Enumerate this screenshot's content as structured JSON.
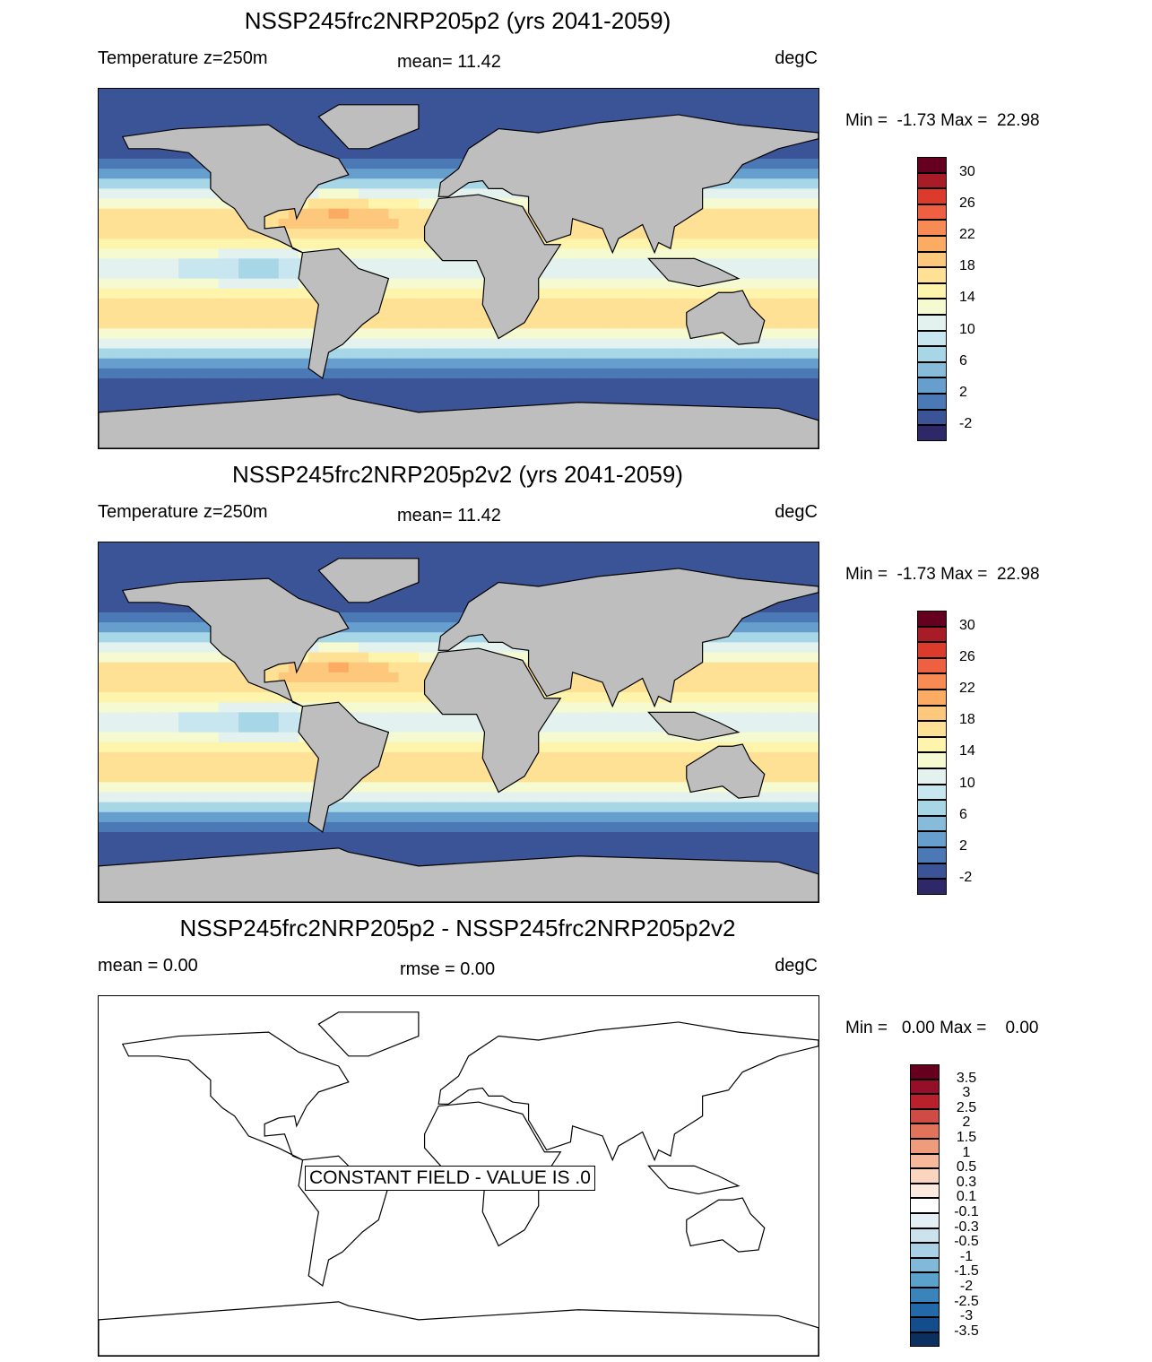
{
  "chart_data": [
    {
      "type": "heatmap",
      "title": "NSSP245frc2NRP205p2 (yrs 2041-2059)",
      "left_label": "Temperature z=250m",
      "center_label": "mean=  11.42",
      "right_label": "degC",
      "minmax": "Min =  -1.73 Max =  22.98",
      "colorbar": {
        "labels": [
          "30",
          "26",
          "22",
          "18",
          "14",
          "10",
          "6",
          "2",
          "-2"
        ],
        "levels": [
          30,
          28,
          26,
          24,
          22,
          20,
          18,
          16,
          14,
          12,
          10,
          8,
          6,
          4,
          2,
          0,
          -2
        ],
        "colors": [
          "#650021",
          "#a81c27",
          "#dc3b2c",
          "#ef6042",
          "#f88b54",
          "#fbab62",
          "#fdc87c",
          "#fee195",
          "#fff4ac",
          "#f5fad0",
          "#e3f2ee",
          "#c8e6f0",
          "#a7d6e7",
          "#86bcd9",
          "#669fcd",
          "#4a79b6",
          "#3a5497",
          "#2e2869"
        ]
      }
    },
    {
      "type": "heatmap",
      "title": "NSSP245frc2NRP205p2v2 (yrs 2041-2059)",
      "left_label": "Temperature z=250m",
      "center_label": "mean=  11.42",
      "right_label": "degC",
      "minmax": "Min =  -1.73 Max =  22.98",
      "colorbar": {
        "labels": [
          "30",
          "26",
          "22",
          "18",
          "14",
          "10",
          "6",
          "2",
          "-2"
        ],
        "levels": [
          30,
          28,
          26,
          24,
          22,
          20,
          18,
          16,
          14,
          12,
          10,
          8,
          6,
          4,
          2,
          0,
          -2
        ],
        "colors": [
          "#650021",
          "#a81c27",
          "#dc3b2c",
          "#ef6042",
          "#f88b54",
          "#fbab62",
          "#fdc87c",
          "#fee195",
          "#fff4ac",
          "#f5fad0",
          "#e3f2ee",
          "#c8e6f0",
          "#a7d6e7",
          "#86bcd9",
          "#669fcd",
          "#4a79b6",
          "#3a5497",
          "#2e2869"
        ]
      }
    },
    {
      "type": "heatmap",
      "title": "NSSP245frc2NRP205p2 - NSSP245frc2NRP205p2v2",
      "left_label": "mean =    0.00",
      "center_label": "rmse =    0.00",
      "right_label": "degC",
      "minmax": "Min =   0.00 Max =    0.00",
      "note": "CONSTANT FIELD - VALUE IS .0",
      "colorbar": {
        "labels": [
          "3.5",
          "3",
          "2.5",
          "2",
          "1.5",
          "1",
          "0.5",
          "0.3",
          "0.1",
          "-0.1",
          "-0.3",
          "-0.5",
          "-1",
          "-1.5",
          "-2",
          "-2.5",
          "-3",
          "-3.5"
        ],
        "levels": [
          3.5,
          3,
          2.5,
          2,
          1.5,
          1,
          0.5,
          0.3,
          0.1,
          -0.1,
          -0.3,
          -0.5,
          -1,
          -1.5,
          -2,
          -2.5,
          -3,
          -3.5
        ],
        "colors": [
          "#67001f",
          "#940f27",
          "#b8202c",
          "#cf4c44",
          "#e0735a",
          "#ef9c7c",
          "#f6b99b",
          "#fcd5c0",
          "#fde9df",
          "#ffffff",
          "#e4eff5",
          "#cce3ee",
          "#a9d0e4",
          "#82b9d9",
          "#5aa1cb",
          "#3a84bb",
          "#2368a8",
          "#144d8b",
          "#0b305f"
        ]
      }
    }
  ]
}
